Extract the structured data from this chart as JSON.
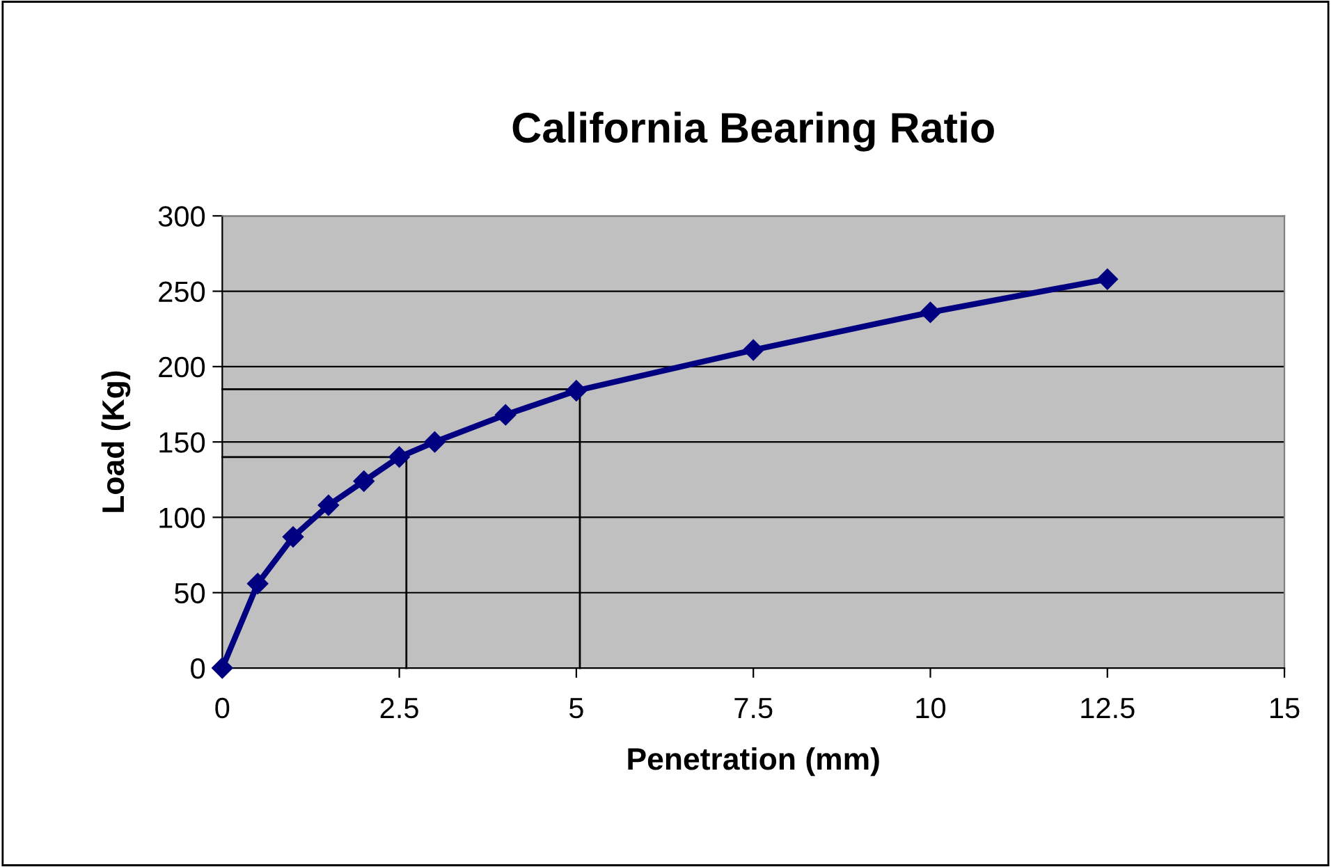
{
  "chart_data": {
    "type": "line",
    "title": "California Bearing Ratio",
    "xlabel": "Penetration (mm)",
    "ylabel": "Load (Kg)",
    "xlim": [
      0,
      15
    ],
    "ylim": [
      0,
      300
    ],
    "xticks": [
      0,
      2.5,
      5,
      7.5,
      10,
      12.5,
      15
    ],
    "yticks": [
      0,
      50,
      100,
      150,
      200,
      250,
      300
    ],
    "grid": "y",
    "legend": false,
    "series": [
      {
        "color": "#000080",
        "marker": "diamond",
        "x": [
          0,
          0.5,
          1,
          1.5,
          2,
          2.5,
          3,
          4,
          5,
          7.5,
          10,
          12.5
        ],
        "values": [
          0,
          56,
          87,
          108,
          124,
          140,
          150,
          168,
          184,
          211,
          236,
          258
        ]
      },
      {
        "color": "#000000",
        "marker": "none",
        "x": [
          0,
          2.6,
          2.6
        ],
        "values": [
          140,
          140,
          0
        ]
      },
      {
        "color": "#000000",
        "marker": "none",
        "x": [
          0,
          5.05,
          5.05
        ],
        "values": [
          185,
          185,
          0
        ]
      }
    ]
  }
}
